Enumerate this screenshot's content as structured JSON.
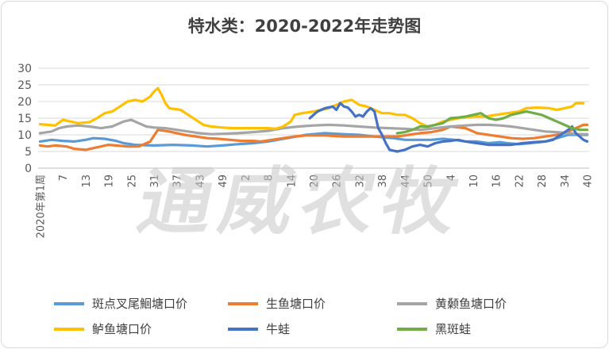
{
  "title": "特水类：2020-2022年走势图",
  "watermark": "通威农牧",
  "chart_data": {
    "type": "line",
    "title": "特水类：2020-2022年走势图",
    "ylim": [
      0,
      30
    ],
    "yticks": [
      0,
      5,
      10,
      15,
      20,
      25,
      30
    ],
    "xtick_labels": [
      "2020年第1周",
      "7",
      "13",
      "19",
      "25",
      "31",
      "37",
      "43",
      "49",
      "2",
      "8",
      "14",
      "20",
      "26",
      "32",
      "38",
      "44",
      "50",
      "4",
      "10",
      "16",
      "22",
      "28",
      "34",
      "40"
    ],
    "weeks_total": 145,
    "legend_position": "bottom",
    "grid": true,
    "series": [
      {
        "name": "斑点叉尾鮰塘口价",
        "color": "#5b9bd5",
        "points": [
          [
            0,
            8
          ],
          [
            3,
            8.5
          ],
          [
            6,
            8.2
          ],
          [
            9,
            8
          ],
          [
            12,
            8.5
          ],
          [
            14,
            9
          ],
          [
            17,
            8.8
          ],
          [
            20,
            8.2
          ],
          [
            22,
            7.5
          ],
          [
            25,
            7
          ],
          [
            30,
            6.8
          ],
          [
            35,
            7
          ],
          [
            40,
            6.8
          ],
          [
            44,
            6.5
          ],
          [
            48,
            6.8
          ],
          [
            52,
            7.2
          ],
          [
            56,
            7.5
          ],
          [
            60,
            8
          ],
          [
            65,
            9
          ],
          [
            70,
            10
          ],
          [
            75,
            10.5
          ],
          [
            80,
            10.2
          ],
          [
            84,
            10
          ],
          [
            88,
            9.5
          ],
          [
            93,
            9
          ],
          [
            96,
            8.5
          ],
          [
            100,
            8.5
          ],
          [
            103,
            8.5
          ],
          [
            106,
            8.8
          ],
          [
            109,
            8.5
          ],
          [
            112,
            8
          ],
          [
            115,
            8
          ],
          [
            118,
            7.5
          ],
          [
            121,
            7.8
          ],
          [
            123,
            7.5
          ],
          [
            126,
            7.2
          ],
          [
            129,
            7.5
          ],
          [
            133,
            8
          ],
          [
            136,
            9
          ],
          [
            139,
            10
          ],
          [
            142,
            10
          ],
          [
            144,
            10
          ]
        ]
      },
      {
        "name": "生鱼塘口价",
        "color": "#ed7d31",
        "points": [
          [
            0,
            6.8
          ],
          [
            2,
            6.5
          ],
          [
            4,
            6.8
          ],
          [
            7,
            6.5
          ],
          [
            9,
            5.8
          ],
          [
            12,
            5.5
          ],
          [
            14,
            6
          ],
          [
            16,
            6.5
          ],
          [
            18,
            7
          ],
          [
            20,
            6.8
          ],
          [
            23,
            6.5
          ],
          [
            26,
            6.5
          ],
          [
            29,
            8
          ],
          [
            31,
            11.5
          ],
          [
            34,
            11
          ],
          [
            38,
            10
          ],
          [
            41,
            9.5
          ],
          [
            44,
            9
          ],
          [
            47,
            8.8
          ],
          [
            50,
            8.5
          ],
          [
            53,
            8.2
          ],
          [
            56,
            8.2
          ],
          [
            58,
            8
          ],
          [
            61,
            8.5
          ],
          [
            64,
            9
          ],
          [
            67,
            9.5
          ],
          [
            70,
            9.8
          ],
          [
            75,
            9.8
          ],
          [
            80,
            9.5
          ],
          [
            85,
            9.5
          ],
          [
            90,
            9.5
          ],
          [
            94,
            9.5
          ],
          [
            97,
            10
          ],
          [
            100,
            10.5
          ],
          [
            103,
            10.8
          ],
          [
            106,
            11.5
          ],
          [
            108,
            12.5
          ],
          [
            112,
            12
          ],
          [
            115,
            10.5
          ],
          [
            118,
            10
          ],
          [
            121,
            9.5
          ],
          [
            124,
            9
          ],
          [
            127,
            8.8
          ],
          [
            130,
            9
          ],
          [
            133,
            9.5
          ],
          [
            136,
            10
          ],
          [
            139,
            11
          ],
          [
            141,
            12
          ],
          [
            143,
            13
          ],
          [
            144,
            13
          ]
        ]
      },
      {
        "name": "黄颡鱼塘口价",
        "color": "#a5a5a5",
        "points": [
          [
            0,
            10.5
          ],
          [
            3,
            11
          ],
          [
            5,
            12
          ],
          [
            7,
            12.5
          ],
          [
            10,
            12.8
          ],
          [
            13,
            12.5
          ],
          [
            16,
            12
          ],
          [
            19,
            12.5
          ],
          [
            22,
            14
          ],
          [
            24,
            14.5
          ],
          [
            26,
            13.5
          ],
          [
            28,
            12.5
          ],
          [
            30,
            12.2
          ],
          [
            33,
            12
          ],
          [
            36,
            11.5
          ],
          [
            39,
            11
          ],
          [
            42,
            10.5
          ],
          [
            45,
            10.2
          ],
          [
            48,
            10.3
          ],
          [
            52,
            10.5
          ],
          [
            56,
            10.8
          ],
          [
            60,
            11.2
          ],
          [
            64,
            12
          ],
          [
            68,
            12.5
          ],
          [
            72,
            12.8
          ],
          [
            76,
            13
          ],
          [
            80,
            12.8
          ],
          [
            84,
            12.5
          ],
          [
            88,
            12.2
          ],
          [
            92,
            12
          ],
          [
            96,
            11.8
          ],
          [
            100,
            11.5
          ],
          [
            104,
            12
          ],
          [
            108,
            12.5
          ],
          [
            112,
            12.8
          ],
          [
            115,
            13
          ],
          [
            118,
            13
          ],
          [
            121,
            12.8
          ],
          [
            124,
            12.5
          ],
          [
            127,
            12
          ],
          [
            130,
            11.5
          ],
          [
            133,
            11
          ],
          [
            136,
            10.8
          ],
          [
            139,
            10.5
          ],
          [
            142,
            10.2
          ],
          [
            144,
            10.2
          ]
        ]
      },
      {
        "name": "鲈鱼塘口价",
        "color": "#ffc000",
        "points": [
          [
            0,
            13.2
          ],
          [
            2,
            13
          ],
          [
            4,
            12.8
          ],
          [
            6,
            14.5
          ],
          [
            8,
            14
          ],
          [
            10,
            13.5
          ],
          [
            13,
            13.8
          ],
          [
            15,
            15
          ],
          [
            17,
            16.5
          ],
          [
            19,
            17
          ],
          [
            21,
            18.5
          ],
          [
            23,
            20
          ],
          [
            25,
            20.5
          ],
          [
            27,
            20
          ],
          [
            29,
            21.5
          ],
          [
            30,
            23
          ],
          [
            31,
            24
          ],
          [
            32,
            22
          ],
          [
            33,
            19.5
          ],
          [
            34,
            18
          ],
          [
            37,
            17.5
          ],
          [
            39,
            16
          ],
          [
            41,
            14.5
          ],
          [
            43,
            13
          ],
          [
            45,
            12.5
          ],
          [
            48,
            12.2
          ],
          [
            51,
            12
          ],
          [
            55,
            12
          ],
          [
            60,
            12
          ],
          [
            62,
            11.8
          ],
          [
            64,
            12.5
          ],
          [
            66,
            14
          ],
          [
            67,
            16
          ],
          [
            69,
            16.5
          ],
          [
            72,
            17
          ],
          [
            74,
            17.5
          ],
          [
            76,
            18
          ],
          [
            78,
            19
          ],
          [
            80,
            20
          ],
          [
            82,
            20.5
          ],
          [
            84,
            19
          ],
          [
            86,
            18.5
          ],
          [
            88,
            17.5
          ],
          [
            90,
            16.5
          ],
          [
            92,
            16.5
          ],
          [
            94,
            16
          ],
          [
            96,
            16
          ],
          [
            98,
            15
          ],
          [
            100,
            13.5
          ],
          [
            102,
            12.5
          ],
          [
            104,
            13
          ],
          [
            106,
            14
          ],
          [
            108,
            14.5
          ],
          [
            110,
            15
          ],
          [
            112,
            15.2
          ],
          [
            114,
            15.5
          ],
          [
            117,
            15.5
          ],
          [
            120,
            16
          ],
          [
            123,
            16.5
          ],
          [
            126,
            17
          ],
          [
            128,
            18
          ],
          [
            131,
            18.2
          ],
          [
            134,
            18
          ],
          [
            136,
            17.5
          ],
          [
            138,
            18
          ],
          [
            140,
            18.5
          ],
          [
            141,
            19.5
          ],
          [
            143,
            19.5
          ]
        ]
      },
      {
        "name": "牛蛙",
        "color": "#4472c4",
        "points": [
          [
            71,
            15
          ],
          [
            73,
            17
          ],
          [
            75,
            18
          ],
          [
            77,
            18.5
          ],
          [
            78,
            17.5
          ],
          [
            79,
            19.5
          ],
          [
            80,
            18.5
          ],
          [
            81,
            18.2
          ],
          [
            82,
            17
          ],
          [
            83,
            15.5
          ],
          [
            84,
            16
          ],
          [
            85,
            15.5
          ],
          [
            86,
            17
          ],
          [
            87,
            18
          ],
          [
            88,
            17
          ],
          [
            89,
            12
          ],
          [
            90,
            10
          ],
          [
            91,
            7.5
          ],
          [
            92,
            5.5
          ],
          [
            94,
            5
          ],
          [
            96,
            5.5
          ],
          [
            98,
            6.5
          ],
          [
            100,
            7
          ],
          [
            102,
            6.5
          ],
          [
            104,
            7.5
          ],
          [
            106,
            8
          ],
          [
            108,
            8.2
          ],
          [
            110,
            8.5
          ],
          [
            112,
            8
          ],
          [
            115,
            7.5
          ],
          [
            118,
            7
          ],
          [
            121,
            7
          ],
          [
            124,
            7
          ],
          [
            127,
            7.5
          ],
          [
            130,
            7.8
          ],
          [
            133,
            8
          ],
          [
            135,
            8.5
          ],
          [
            137,
            10
          ],
          [
            139,
            11.5
          ],
          [
            140,
            12.5
          ],
          [
            141,
            10.5
          ],
          [
            142,
            9.5
          ],
          [
            143,
            8.5
          ],
          [
            144,
            8
          ]
        ]
      },
      {
        "name": "黑斑蛙",
        "color": "#70ad47",
        "points": [
          [
            94,
            10.5
          ],
          [
            96,
            10.8
          ],
          [
            98,
            11.5
          ],
          [
            100,
            12.5
          ],
          [
            102,
            12.5
          ],
          [
            104,
            13
          ],
          [
            106,
            13.5
          ],
          [
            108,
            15
          ],
          [
            110,
            15.2
          ],
          [
            112,
            15.5
          ],
          [
            114,
            16
          ],
          [
            116,
            16.5
          ],
          [
            118,
            15
          ],
          [
            120,
            14.5
          ],
          [
            122,
            15
          ],
          [
            124,
            16
          ],
          [
            126,
            16.5
          ],
          [
            128,
            17
          ],
          [
            130,
            16.5
          ],
          [
            132,
            16
          ],
          [
            134,
            15
          ],
          [
            136,
            14
          ],
          [
            138,
            13
          ],
          [
            140,
            12
          ],
          [
            142,
            11.5
          ],
          [
            144,
            11.5
          ]
        ]
      }
    ]
  },
  "legend": [
    {
      "label": "斑点叉尾鮰塘口价",
      "color": "#5b9bd5"
    },
    {
      "label": "生鱼塘口价",
      "color": "#ed7d31"
    },
    {
      "label": "黄颡鱼塘口价",
      "color": "#a5a5a5"
    },
    {
      "label": "鲈鱼塘口价",
      "color": "#ffc000"
    },
    {
      "label": "牛蛙",
      "color": "#4472c4"
    },
    {
      "label": "黑斑蛙",
      "color": "#70ad47"
    }
  ]
}
